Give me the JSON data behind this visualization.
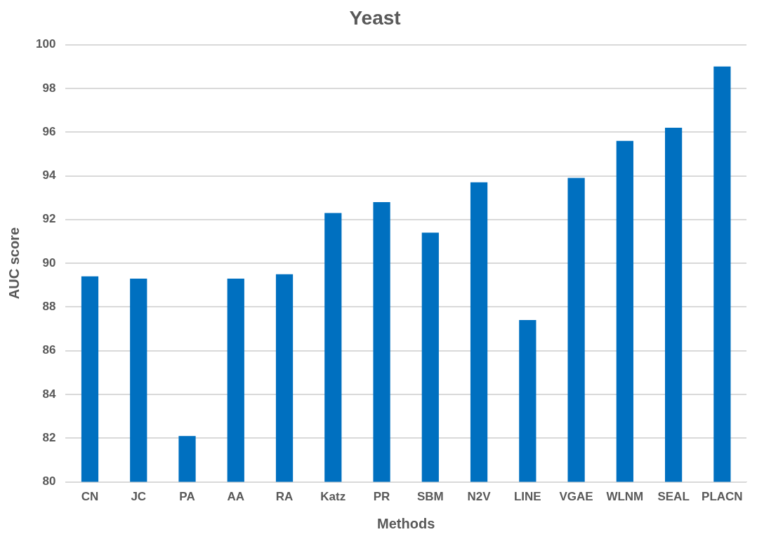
{
  "chart_data": {
    "type": "bar",
    "title": "Yeast",
    "xlabel": "Methods",
    "ylabel": "AUC score",
    "categories": [
      "CN",
      "JC",
      "PA",
      "AA",
      "RA",
      "Katz",
      "PR",
      "SBM",
      "N2V",
      "LINE",
      "VGAE",
      "WLNM",
      "SEAL",
      "PLACN"
    ],
    "values": [
      89.4,
      89.3,
      82.1,
      89.3,
      89.5,
      92.3,
      92.8,
      91.4,
      93.7,
      87.4,
      93.9,
      95.6,
      96.2,
      99.0
    ],
    "color": "#0070c0",
    "ylim": [
      80,
      100
    ],
    "yticks": [
      80,
      82,
      84,
      86,
      88,
      90,
      92,
      94,
      96,
      98,
      100
    ],
    "grid": "y",
    "legend": false
  }
}
